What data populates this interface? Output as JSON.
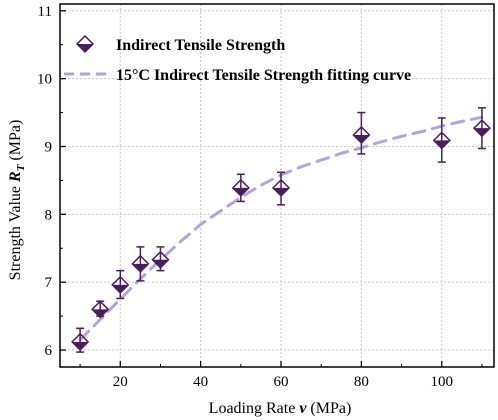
{
  "chart_data": {
    "type": "scatter",
    "title": "",
    "xlabel_prefix": "Loading Rate ",
    "xlabel_var": "v",
    "xlabel_unit": " (MPa)",
    "ylabel_prefix": "Strength Value ",
    "ylabel_var": "R",
    "ylabel_sub": "T",
    "ylabel_unit": " (MPa)",
    "xlim": [
      5,
      113
    ],
    "ylim": [
      5.75,
      11.1
    ],
    "x_ticks": [
      20,
      40,
      60,
      80,
      100
    ],
    "y_ticks": [
      6,
      7,
      8,
      9,
      10,
      11
    ],
    "grid": true,
    "legend_position": "top-left",
    "colors": {
      "marker": "#4a1d5c",
      "fit": "#b4a3d6",
      "grid": "#c8c8c8"
    },
    "series": [
      {
        "name": "Indirect Tensile Strength",
        "kind": "points",
        "x": [
          10,
          15,
          20,
          25,
          30,
          50,
          60,
          80,
          100,
          110
        ],
        "y": [
          6.12,
          6.6,
          6.96,
          7.27,
          7.33,
          8.39,
          8.39,
          9.17,
          9.09,
          9.27
        ],
        "err_low": [
          0.15,
          0.1,
          0.2,
          0.25,
          0.16,
          0.2,
          0.25,
          0.28,
          0.32,
          0.3
        ],
        "err_high": [
          0.2,
          0.12,
          0.21,
          0.25,
          0.19,
          0.2,
          0.23,
          0.33,
          0.33,
          0.3
        ]
      },
      {
        "name": "15°C Indirect Tensile Strength fitting curve",
        "kind": "fit",
        "x": [
          10,
          15,
          20,
          25,
          30,
          35,
          40,
          45,
          50,
          55,
          60,
          65,
          70,
          75,
          80,
          85,
          90,
          95,
          100,
          105,
          110
        ],
        "y": [
          6.15,
          6.45,
          6.75,
          7.05,
          7.33,
          7.6,
          7.85,
          8.05,
          8.25,
          8.43,
          8.58,
          8.7,
          8.8,
          8.9,
          8.98,
          9.07,
          9.15,
          9.22,
          9.3,
          9.37,
          9.43
        ]
      }
    ]
  }
}
